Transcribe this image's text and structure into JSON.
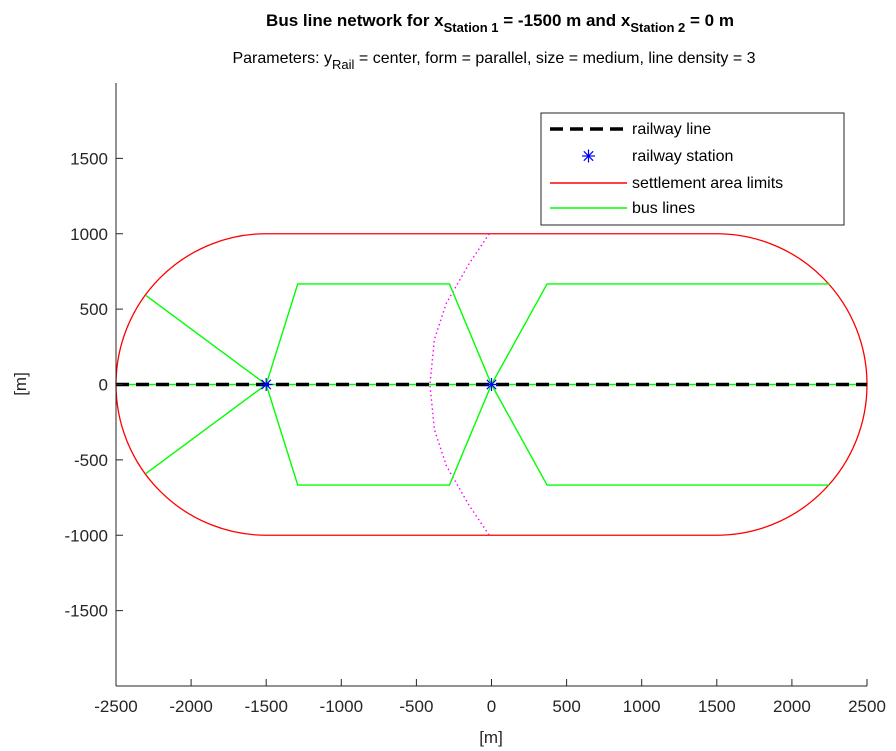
{
  "chart_data": {
    "type": "line",
    "title": {
      "prefix": "Bus line network for x",
      "sub1": "Station 1",
      "mid": " = -1500 m and x",
      "sub2": "Station 2",
      "suffix": " = 0 m"
    },
    "subtitle": {
      "prefix": "Parameters: y",
      "sub": "Rail",
      "suffix": " = center, form = parallel, size = medium, line density = 3"
    },
    "xlabel": "[m]",
    "ylabel": "[m]",
    "xlim": [
      -2500,
      2500
    ],
    "ylim": [
      -2000,
      2000
    ],
    "xticks": [
      -2500,
      -2000,
      -1500,
      -1000,
      -500,
      0,
      500,
      1000,
      1500,
      2000,
      2500
    ],
    "yticks": [
      -1500,
      -1000,
      -500,
      0,
      500,
      1000,
      1500
    ],
    "grid": false,
    "legend_position": "top-right",
    "series": [
      {
        "name": "railway line",
        "color": "#000000",
        "style": "dashed",
        "segments": [
          [
            [
              -2500,
              0
            ],
            [
              2500,
              0
            ]
          ]
        ]
      },
      {
        "name": "railway station",
        "color": "#0000ff",
        "marker": "asterisk",
        "points": [
          [
            -1500,
            0
          ],
          [
            0,
            0
          ]
        ]
      },
      {
        "name": "settlement area limits",
        "color": "#ff0000",
        "shape": "stadium",
        "straight_x": [
          -1500,
          1500
        ],
        "radius": 1000
      },
      {
        "name": "bus lines",
        "color": "#00ff00",
        "segments": [
          [
            [
              -2500,
              0
            ],
            [
              2500,
              0
            ]
          ],
          [
            [
              -1500,
              0
            ],
            [
              -2300,
              590
            ]
          ],
          [
            [
              -1500,
              0
            ],
            [
              -2300,
              -590
            ]
          ],
          [
            [
              -1500,
              0
            ],
            [
              -1290,
              667
            ],
            [
              -280,
              667
            ],
            [
              0,
              0
            ],
            [
              370,
              667
            ],
            [
              2250,
              667
            ]
          ],
          [
            [
              -1500,
              0
            ],
            [
              -1290,
              -667
            ],
            [
              -280,
              -667
            ],
            [
              0,
              0
            ],
            [
              370,
              -667
            ],
            [
              2250,
              -667
            ]
          ]
        ]
      }
    ],
    "boundary": {
      "color": "#ff00ff",
      "style": "dotted",
      "points": [
        [
          -15,
          1000
        ],
        [
          -150,
          800
        ],
        [
          -300,
          540
        ],
        [
          -380,
          300
        ],
        [
          -410,
          0
        ],
        [
          -380,
          -300
        ],
        [
          -300,
          -540
        ],
        [
          -150,
          -800
        ],
        [
          -15,
          -1000
        ]
      ]
    }
  }
}
